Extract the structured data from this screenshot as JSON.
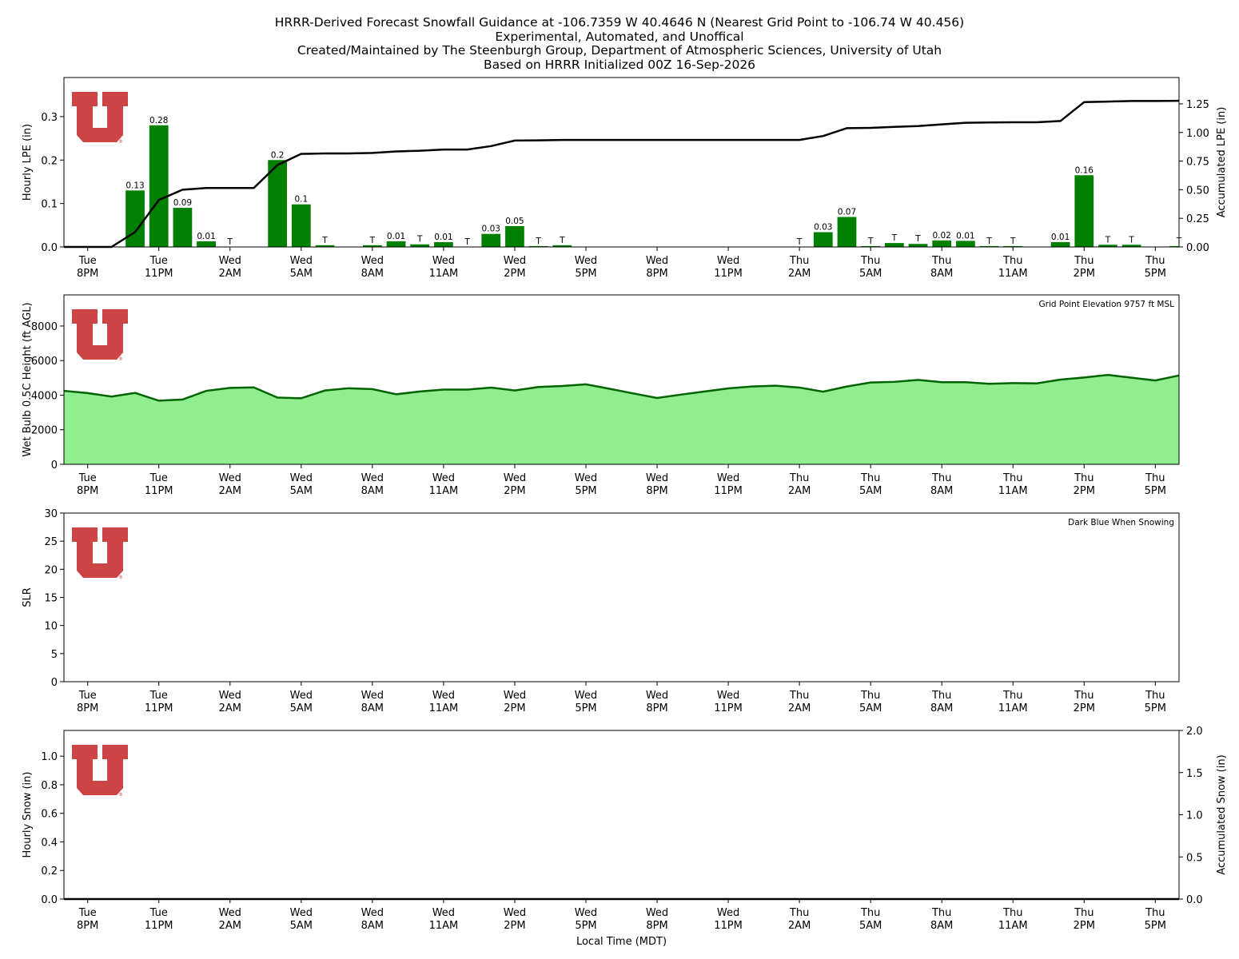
{
  "header": {
    "lines": [
      "HRRR-Derived Forecast Snowfall Guidance at -106.7359 W 40.4646 N (Nearest Grid Point to -106.74 W 40.456)",
      "Experimental, Automated, and Unoffical",
      "Created/Maintained by The Steenburgh Group, Department of Atmospheric Sciences, University of Utah",
      "Based on HRRR Initialized 00Z 16-Sep-2026"
    ]
  },
  "colors": {
    "bar": "#008000",
    "accum_line": "#000000",
    "wetbulb_fill": "#90ee90",
    "wetbulb_line": "#006400",
    "logo": "#cc4444"
  },
  "x_axis": {
    "ticks": [
      {
        "hour": 1,
        "day": "Tue",
        "time": "8PM"
      },
      {
        "hour": 4,
        "day": "Tue",
        "time": "11PM"
      },
      {
        "hour": 7,
        "day": "Wed",
        "time": "2AM"
      },
      {
        "hour": 10,
        "day": "Wed",
        "time": "5AM"
      },
      {
        "hour": 13,
        "day": "Wed",
        "time": "8AM"
      },
      {
        "hour": 16,
        "day": "Wed",
        "time": "11AM"
      },
      {
        "hour": 19,
        "day": "Wed",
        "time": "2PM"
      },
      {
        "hour": 22,
        "day": "Wed",
        "time": "5PM"
      },
      {
        "hour": 25,
        "day": "Wed",
        "time": "8PM"
      },
      {
        "hour": 28,
        "day": "Wed",
        "time": "11PM"
      },
      {
        "hour": 31,
        "day": "Thu",
        "time": "2AM"
      },
      {
        "hour": 34,
        "day": "Thu",
        "time": "5AM"
      },
      {
        "hour": 37,
        "day": "Thu",
        "time": "8AM"
      },
      {
        "hour": 40,
        "day": "Thu",
        "time": "11AM"
      },
      {
        "hour": 43,
        "day": "Thu",
        "time": "2PM"
      },
      {
        "hour": 46,
        "day": "Thu",
        "time": "5PM"
      }
    ],
    "xlabel": "Local Time (MDT)"
  },
  "chart_data": [
    {
      "type": "bar",
      "ylabel": "Hourly LPE (in)",
      "y2label": "Accumulated LPE (in)",
      "xlim": [
        0,
        47
      ],
      "ylim": [
        0,
        0.39
      ],
      "y2lim": [
        0,
        1.48
      ],
      "yticks": [
        "0.0",
        "0.1",
        "0.2",
        "0.3"
      ],
      "y2ticks": [
        "0.00",
        "0.25",
        "0.50",
        "0.75",
        "1.00",
        "1.25"
      ],
      "bars": [
        {
          "hour": 3,
          "value": 0.13,
          "label": "0.13"
        },
        {
          "hour": 4,
          "value": 0.28,
          "label": "0.28"
        },
        {
          "hour": 5,
          "value": 0.09,
          "label": "0.09"
        },
        {
          "hour": 6,
          "value": 0.013,
          "label": "0.01"
        },
        {
          "hour": 7,
          "value": 0.0,
          "label": "T"
        },
        {
          "hour": 9,
          "value": 0.2,
          "label": "0.2"
        },
        {
          "hour": 10,
          "value": 0.098,
          "label": "0.1"
        },
        {
          "hour": 11,
          "value": 0.004,
          "label": "T"
        },
        {
          "hour": 13,
          "value": 0.004,
          "label": "T"
        },
        {
          "hour": 14,
          "value": 0.013,
          "label": "0.01"
        },
        {
          "hour": 15,
          "value": 0.006,
          "label": "T"
        },
        {
          "hour": 16,
          "value": 0.011,
          "label": "0.01"
        },
        {
          "hour": 17,
          "value": 0.0,
          "label": "T"
        },
        {
          "hour": 18,
          "value": 0.03,
          "label": "0.03"
        },
        {
          "hour": 19,
          "value": 0.048,
          "label": "0.05"
        },
        {
          "hour": 20,
          "value": 0.002,
          "label": "T"
        },
        {
          "hour": 21,
          "value": 0.004,
          "label": "T"
        },
        {
          "hour": 31,
          "value": 0.0,
          "label": "T"
        },
        {
          "hour": 32,
          "value": 0.034,
          "label": "0.03"
        },
        {
          "hour": 33,
          "value": 0.069,
          "label": "0.07"
        },
        {
          "hour": 34,
          "value": 0.002,
          "label": "T"
        },
        {
          "hour": 35,
          "value": 0.009,
          "label": "T"
        },
        {
          "hour": 36,
          "value": 0.007,
          "label": "T"
        },
        {
          "hour": 37,
          "value": 0.015,
          "label": "0.02"
        },
        {
          "hour": 38,
          "value": 0.014,
          "label": "0.01"
        },
        {
          "hour": 39,
          "value": 0.002,
          "label": "T"
        },
        {
          "hour": 40,
          "value": 0.002,
          "label": "T"
        },
        {
          "hour": 42,
          "value": 0.011,
          "label": "0.01"
        },
        {
          "hour": 43,
          "value": 0.165,
          "label": "0.16"
        },
        {
          "hour": 44,
          "value": 0.005,
          "label": "T"
        },
        {
          "hour": 45,
          "value": 0.005,
          "label": "T"
        },
        {
          "hour": 47,
          "value": 0.002,
          "label": "T"
        }
      ],
      "accumulated": [
        0,
        0,
        0,
        0.13,
        0.41,
        0.5,
        0.515,
        0.515,
        0.515,
        0.715,
        0.813,
        0.817,
        0.817,
        0.821,
        0.834,
        0.84,
        0.851,
        0.851,
        0.881,
        0.929,
        0.931,
        0.935,
        0.935,
        0.935,
        0.935,
        0.935,
        0.935,
        0.935,
        0.935,
        0.935,
        0.935,
        0.935,
        0.969,
        1.038,
        1.04,
        1.049,
        1.056,
        1.071,
        1.085,
        1.087,
        1.089,
        1.089,
        1.1,
        1.265,
        1.27,
        1.275,
        1.275,
        1.277
      ]
    },
    {
      "type": "area",
      "ylabel": "Wet Bulb 0.5C Height (ft AGL)",
      "annotation": "Grid Point Elevation 9757 ft MSL",
      "xlim": [
        0,
        47
      ],
      "ylim": [
        0,
        9800
      ],
      "yticks": [
        "0",
        "2000",
        "4000",
        "6000",
        "8000"
      ],
      "values": [
        4250,
        4120,
        3920,
        4130,
        3680,
        3750,
        4250,
        4420,
        4450,
        3860,
        3820,
        4270,
        4400,
        4350,
        4050,
        4210,
        4320,
        4320,
        4440,
        4270,
        4470,
        4530,
        4630,
        4370,
        4100,
        3840,
        4030,
        4210,
        4390,
        4500,
        4550,
        4440,
        4200,
        4500,
        4730,
        4770,
        4880,
        4750,
        4750,
        4660,
        4700,
        4680,
        4900,
        5020,
        5170,
        5010,
        4850,
        5140
      ]
    },
    {
      "type": "scatter",
      "ylabel": "SLR",
      "annotation": "Dark Blue When Snowing",
      "xlim": [
        0,
        47
      ],
      "ylim": [
        0,
        30
      ],
      "yticks": [
        "0",
        "5",
        "10",
        "15",
        "20",
        "25",
        "30"
      ],
      "values": []
    },
    {
      "type": "bar",
      "ylabel": "Hourly Snow (in)",
      "y2label": "Accumulated Snow (in)",
      "xlim": [
        0,
        47
      ],
      "ylim": [
        0,
        1.18
      ],
      "y2lim": [
        0,
        2.0
      ],
      "yticks": [
        "0.0",
        "0.2",
        "0.4",
        "0.6",
        "0.8",
        "1.0"
      ],
      "y2ticks": [
        "0.0",
        "0.5",
        "1.0",
        "1.5",
        "2.0"
      ],
      "values": [],
      "accumulated": [
        0,
        0,
        0,
        0,
        0,
        0,
        0,
        0,
        0,
        0,
        0,
        0,
        0,
        0,
        0,
        0,
        0,
        0,
        0,
        0,
        0,
        0,
        0,
        0,
        0,
        0,
        0,
        0,
        0,
        0,
        0,
        0,
        0,
        0,
        0,
        0,
        0,
        0,
        0,
        0,
        0,
        0,
        0,
        0,
        0,
        0,
        0,
        0
      ]
    }
  ]
}
